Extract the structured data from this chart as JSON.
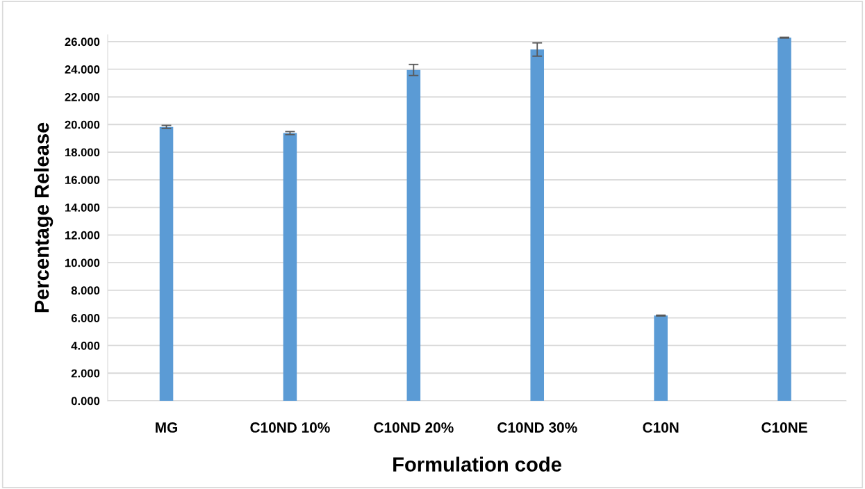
{
  "chart_data": {
    "type": "bar",
    "xlabel": "Formulation code",
    "ylabel": "Percentage Release",
    "categories": [
      "MG",
      "C10ND 10%",
      "C10ND 20%",
      "C10ND 30%",
      "C10N",
      "C10NE"
    ],
    "values": [
      19.83,
      19.38,
      23.95,
      25.43,
      6.17,
      26.29
    ],
    "errors": [
      0.11,
      0.11,
      0.4,
      0.48,
      0.03,
      0.03
    ],
    "color": "#5b9bd5",
    "ylim": [
      0,
      26.5
    ],
    "yticks": [
      {
        "value": 0,
        "label": "0.000"
      },
      {
        "value": 2,
        "label": "2.000"
      },
      {
        "value": 4,
        "label": "4.000"
      },
      {
        "value": 6,
        "label": "6.000"
      },
      {
        "value": 8,
        "label": "8.000"
      },
      {
        "value": 10,
        "label": "10.000"
      },
      {
        "value": 12,
        "label": "12.000"
      },
      {
        "value": 14,
        "label": "14.000"
      },
      {
        "value": 16,
        "label": "16.000"
      },
      {
        "value": 18,
        "label": "18.000"
      },
      {
        "value": 20,
        "label": "20.000"
      },
      {
        "value": 22,
        "label": "22.000"
      },
      {
        "value": 24,
        "label": "24.000"
      },
      {
        "value": 26,
        "label": "26.000"
      }
    ],
    "grid": "y"
  }
}
